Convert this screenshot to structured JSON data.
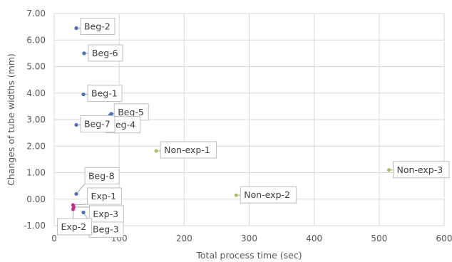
{
  "chart_data": {
    "type": "scatter",
    "xlabel": "Total process time (sec)",
    "ylabel": "Changes of tube widths (mm)",
    "xlim": [
      0,
      600
    ],
    "ylim": [
      -1.0,
      7.0
    ],
    "x_ticks": [
      0,
      100,
      200,
      300,
      400,
      500,
      600
    ],
    "y_ticks": [
      -1.0,
      0.0,
      1.0,
      2.0,
      3.0,
      4.0,
      5.0,
      6.0,
      7.0
    ],
    "grid": true,
    "colors": {
      "beg": "#4472C4",
      "exp": "#C0308A",
      "nonexp": "#A9C25C",
      "grid": "#D9D9D9",
      "label_border": "#BFBFBF",
      "leader": "#A6A6A6"
    },
    "points": [
      {
        "label": "Beg-2",
        "group": "beg",
        "x": 34,
        "y": 6.45
      },
      {
        "label": "Beg-6",
        "group": "beg",
        "x": 46,
        "y": 5.5
      },
      {
        "label": "Beg-1",
        "group": "beg",
        "x": 45,
        "y": 3.95
      },
      {
        "label": "Beg-5",
        "group": "beg",
        "x": 88,
        "y": 3.22
      },
      {
        "label": "Beg-4",
        "group": "beg",
        "x": 86,
        "y": 3.17
      },
      {
        "label": "Beg-7",
        "group": "beg",
        "x": 34,
        "y": 2.8
      },
      {
        "label": "Beg-8",
        "group": "beg",
        "x": 34,
        "y": 0.2
      },
      {
        "label": "Beg-3",
        "group": "beg",
        "x": 45,
        "y": -0.5
      },
      {
        "label": "Exp-1",
        "group": "exp",
        "x": 29,
        "y": -0.22
      },
      {
        "label": "Exp-3",
        "group": "exp",
        "x": 30,
        "y": -0.3
      },
      {
        "label": "Exp-2",
        "group": "exp",
        "x": 29,
        "y": -0.38
      },
      {
        "label": "Non-exp-1",
        "group": "nonexp",
        "x": 157,
        "y": 1.82
      },
      {
        "label": "Non-exp-2",
        "group": "nonexp",
        "x": 280,
        "y": 0.15
      },
      {
        "label": "Non-exp-3",
        "group": "nonexp",
        "x": 515,
        "y": 1.1
      }
    ]
  }
}
